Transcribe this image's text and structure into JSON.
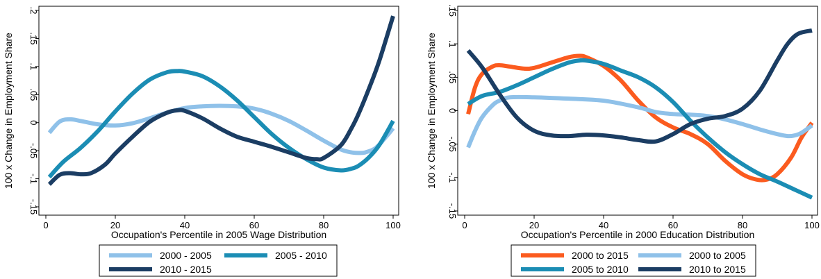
{
  "chart_data": [
    {
      "type": "line",
      "xlabel": "Occupation's Percentile in 2005 Wage Distribution",
      "ylabel": "100 x Change in Employment Share",
      "xlim": [
        0,
        100
      ],
      "ylim": [
        -0.15,
        0.2
      ],
      "xticks": [
        0,
        20,
        40,
        60,
        80,
        100
      ],
      "xtick_labels": [
        "0",
        "20",
        "40",
        "60",
        "80",
        "100"
      ],
      "yticks": [
        -0.15,
        -0.1,
        -0.05,
        0,
        0.05,
        0.1,
        0.15,
        0.2
      ],
      "ytick_labels": [
        "-.15",
        "-.1",
        "-.05",
        "0",
        ".05",
        ".1",
        ".15",
        ".2"
      ],
      "grid": false,
      "legend_position": "bottom",
      "legend_columns": 2,
      "series": [
        {
          "name": "2000 - 2005",
          "color": "#8fc1e9",
          "x": [
            1,
            4,
            7,
            10,
            15,
            20,
            25,
            30,
            35,
            40,
            45,
            50,
            55,
            60,
            65,
            70,
            75,
            80,
            85,
            88,
            90,
            92,
            95,
            98,
            100
          ],
          "y": [
            -0.018,
            0.002,
            0.006,
            0.003,
            -0.003,
            -0.005,
            -0.001,
            0.008,
            0.018,
            0.026,
            0.029,
            0.03,
            0.029,
            0.025,
            0.016,
            0.003,
            -0.014,
            -0.032,
            -0.048,
            -0.053,
            -0.054,
            -0.053,
            -0.045,
            -0.025,
            -0.01
          ]
        },
        {
          "name": "2005 - 2010",
          "color": "#1b8db4",
          "x": [
            1,
            5,
            10,
            15,
            20,
            25,
            30,
            35,
            38,
            40,
            45,
            50,
            55,
            60,
            65,
            70,
            75,
            80,
            85,
            88,
            90,
            93,
            96,
            100
          ],
          "y": [
            -0.097,
            -0.07,
            -0.045,
            -0.015,
            0.02,
            0.052,
            0.077,
            0.09,
            0.092,
            0.091,
            0.083,
            0.065,
            0.04,
            0.01,
            -0.02,
            -0.045,
            -0.065,
            -0.08,
            -0.085,
            -0.082,
            -0.077,
            -0.062,
            -0.04,
            0.003
          ]
        },
        {
          "name": "2010 - 2015",
          "color": "#1b3d63",
          "x": [
            1,
            4,
            7,
            10,
            13,
            17,
            20,
            25,
            30,
            35,
            38,
            40,
            45,
            50,
            55,
            60,
            65,
            70,
            75,
            78,
            80,
            85,
            88,
            90,
            93,
            96,
            100
          ],
          "y": [
            -0.11,
            -0.093,
            -0.09,
            -0.092,
            -0.09,
            -0.075,
            -0.055,
            -0.025,
            0.002,
            0.018,
            0.022,
            0.021,
            0.008,
            -0.01,
            -0.025,
            -0.034,
            -0.043,
            -0.053,
            -0.063,
            -0.065,
            -0.063,
            -0.04,
            -0.01,
            0.015,
            0.06,
            0.11,
            0.19
          ]
        }
      ]
    },
    {
      "type": "line",
      "xlabel": "Occupation's Percentile in 2000 Education Distribution",
      "ylabel": "100 x Change in Employment Share",
      "xlim": [
        0,
        100
      ],
      "ylim": [
        -0.15,
        0.15
      ],
      "xticks": [
        0,
        20,
        40,
        60,
        80,
        100
      ],
      "xtick_labels": [
        "0",
        "20",
        "40",
        "60",
        "80",
        "100"
      ],
      "yticks": [
        -0.15,
        -0.1,
        -0.05,
        0,
        0.05,
        0.1,
        0.15
      ],
      "ytick_labels": [
        "-.15",
        "-.1",
        "-.05",
        "0",
        ".05",
        ".1",
        ".15"
      ],
      "grid": false,
      "legend_position": "bottom",
      "legend_columns": 2,
      "series": [
        {
          "name": "2000 to 2015",
          "color": "#fb5b1f",
          "x": [
            1,
            3,
            5,
            8,
            10,
            13,
            17,
            20,
            25,
            30,
            33,
            35,
            40,
            45,
            50,
            55,
            60,
            65,
            70,
            75,
            80,
            84,
            87,
            90,
            94,
            97,
            100
          ],
          "y": [
            -0.005,
            0.035,
            0.055,
            0.066,
            0.068,
            0.066,
            0.063,
            0.064,
            0.072,
            0.08,
            0.082,
            0.08,
            0.067,
            0.045,
            0.015,
            -0.01,
            -0.025,
            -0.035,
            -0.05,
            -0.075,
            -0.095,
            -0.103,
            -0.103,
            -0.095,
            -0.07,
            -0.04,
            -0.018
          ]
        },
        {
          "name": "2000 to 2005",
          "color": "#8fc1e9",
          "x": [
            1,
            3,
            5,
            8,
            10,
            13,
            20,
            30,
            40,
            50,
            55,
            60,
            65,
            70,
            75,
            80,
            85,
            90,
            93,
            95,
            97,
            100
          ],
          "y": [
            -0.055,
            -0.03,
            -0.01,
            0.008,
            0.015,
            0.02,
            0.02,
            0.018,
            0.015,
            0.005,
            -0.002,
            -0.005,
            -0.006,
            -0.008,
            -0.013,
            -0.02,
            -0.028,
            -0.035,
            -0.038,
            -0.037,
            -0.033,
            -0.022
          ]
        },
        {
          "name": "2005 to 2010",
          "color": "#1b8db4",
          "x": [
            1,
            5,
            10,
            15,
            20,
            25,
            30,
            33,
            35,
            40,
            45,
            50,
            55,
            60,
            65,
            70,
            75,
            80,
            85,
            90,
            95,
            100
          ],
          "y": [
            0.01,
            0.022,
            0.028,
            0.038,
            0.05,
            0.062,
            0.072,
            0.075,
            0.075,
            0.07,
            0.06,
            0.05,
            0.035,
            0.013,
            -0.015,
            -0.04,
            -0.062,
            -0.08,
            -0.095,
            -0.106,
            -0.118,
            -0.13
          ]
        },
        {
          "name": "2010 to 2015",
          "color": "#1b3d63",
          "x": [
            1,
            5,
            10,
            15,
            20,
            25,
            30,
            35,
            40,
            45,
            50,
            55,
            60,
            65,
            70,
            75,
            80,
            85,
            90,
            93,
            96,
            100
          ],
          "y": [
            0.09,
            0.065,
            0.025,
            -0.01,
            -0.03,
            -0.037,
            -0.038,
            -0.036,
            -0.037,
            -0.04,
            -0.044,
            -0.046,
            -0.035,
            -0.02,
            -0.012,
            -0.008,
            0.003,
            0.03,
            0.075,
            0.1,
            0.115,
            0.12
          ]
        }
      ]
    }
  ]
}
